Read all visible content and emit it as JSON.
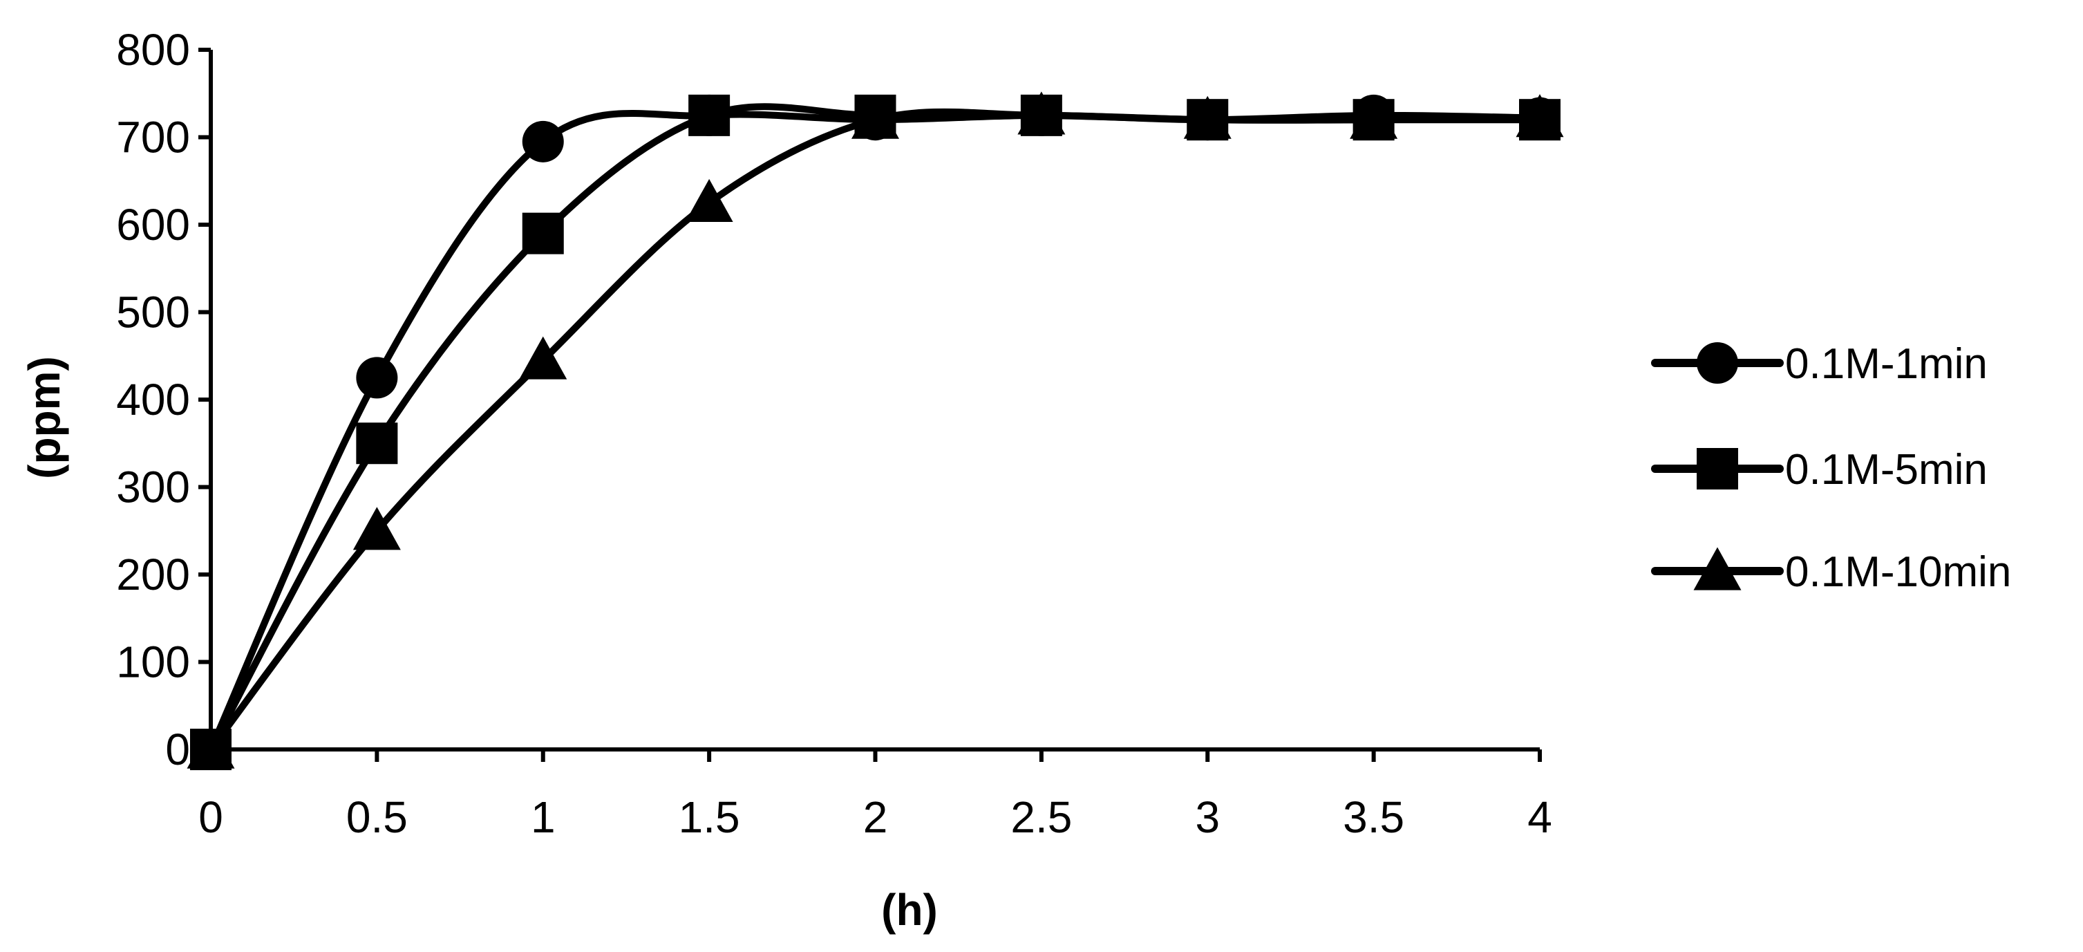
{
  "chart_data": {
    "type": "line",
    "title": "",
    "xlabel": "(h)",
    "ylabel": "(ppm)",
    "xlim": [
      0,
      4
    ],
    "ylim": [
      0,
      800
    ],
    "x_ticks": [
      "0",
      "0.5",
      "1",
      "1.5",
      "2",
      "2.5",
      "3",
      "3.5",
      "4"
    ],
    "y_ticks": [
      "0",
      "100",
      "200",
      "300",
      "400",
      "500",
      "600",
      "700",
      "800"
    ],
    "grid": false,
    "legend_position": "right",
    "smooth": true,
    "colors": {
      "line": "#000000",
      "background": "#ffffff"
    },
    "x": [
      0,
      0.5,
      1,
      1.5,
      2,
      2.5,
      3,
      3.5,
      4
    ],
    "series": [
      {
        "name": "0.1M-1min",
        "marker": "circle",
        "values": [
          0,
          425,
          695,
          725,
          720,
          725,
          720,
          725,
          722
        ]
      },
      {
        "name": "0.1M-5min",
        "marker": "square",
        "values": [
          0,
          350,
          590,
          725,
          725,
          725,
          720,
          720,
          720
        ]
      },
      {
        "name": "0.1M-10min",
        "marker": "triangle",
        "values": [
          0,
          250,
          445,
          625,
          720,
          725,
          720,
          720,
          722
        ]
      }
    ]
  }
}
